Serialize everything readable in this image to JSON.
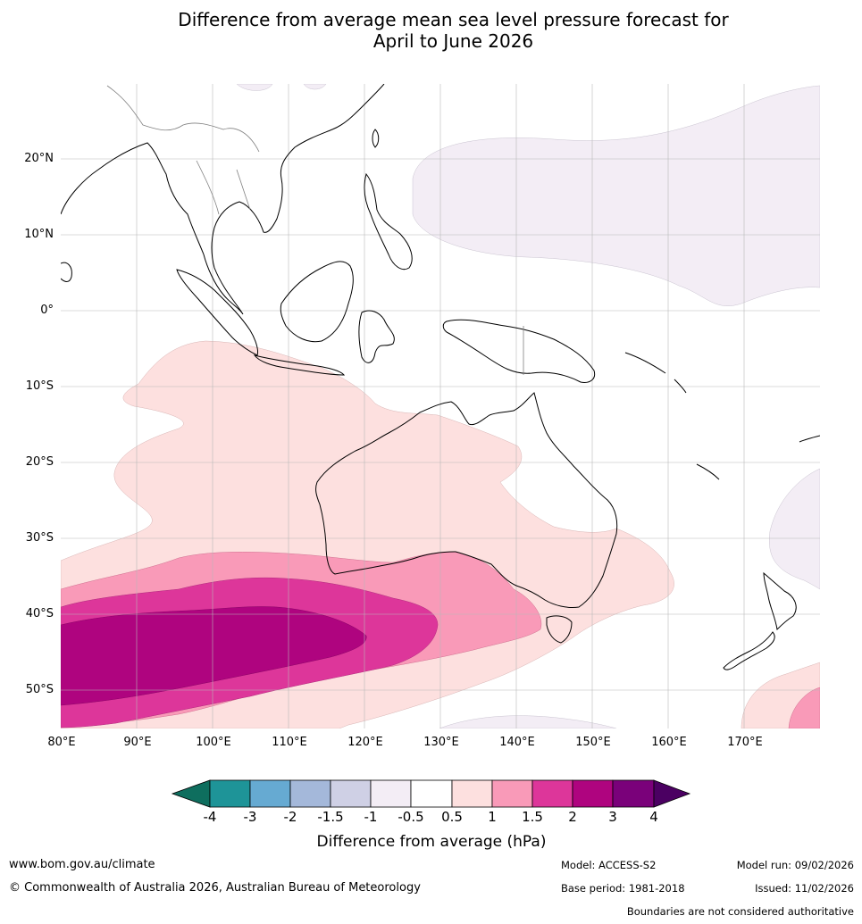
{
  "title_line1": "Difference from average mean sea level pressure forecast for",
  "title_line2": "April to June 2026",
  "lat_labels": [
    "20°N",
    "10°N",
    "0°",
    "10°S",
    "20°S",
    "30°S",
    "40°S",
    "50°S"
  ],
  "lat_values": [
    20,
    10,
    0,
    -10,
    -20,
    -30,
    -40,
    -50
  ],
  "lon_labels": [
    "80°E",
    "90°E",
    "100°E",
    "110°E",
    "120°E",
    "130°E",
    "140°E",
    "150°E",
    "160°E",
    "170°E"
  ],
  "lon_values": [
    80,
    90,
    100,
    110,
    120,
    130,
    140,
    150,
    160,
    170
  ],
  "extent": {
    "lon_min": 80,
    "lon_max": 180,
    "lat_min": -55,
    "lat_max": 30
  },
  "colorbar": {
    "title": "Difference from average (hPa)",
    "tick_labels": [
      "-4",
      "-3",
      "-2",
      "-1.5",
      "-1",
      "-0.5",
      "0.5",
      "1",
      "1.5",
      "2",
      "3",
      "4"
    ],
    "colors": [
      "#0e6e5e",
      "#1e9498",
      "#66aad2",
      "#a4b8da",
      "#cfd0e5",
      "#f3edf5",
      "#ffffff",
      "#fde0df",
      "#f99ab8",
      "#dd369a",
      "#af047f",
      "#7a017a",
      "#4b0062"
    ]
  },
  "footer": {
    "website": "www.bom.gov.au/climate",
    "copyright": "© Commonwealth of Australia 2026, Australian Bureau of Meteorology",
    "model": "Model: ACCESS-S2",
    "base_period": "Base period: 1981-2018",
    "model_run": "Model run: 09/02/2026",
    "issued": "Issued: 11/02/2026",
    "disclaimer": "Boundaries are not considered authoritative"
  }
}
